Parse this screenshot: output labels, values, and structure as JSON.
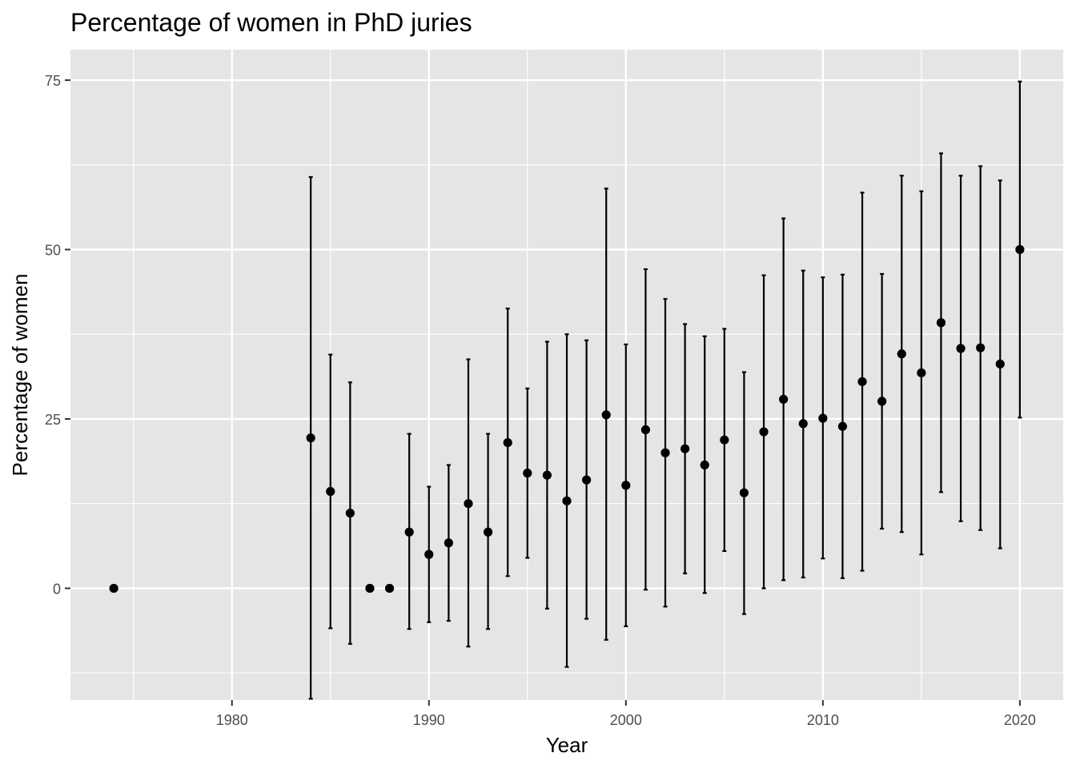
{
  "chart_data": {
    "type": "scatter",
    "title": "Percentage of women in PhD juries",
    "xlabel": "Year",
    "ylabel": "Percentage of women",
    "xlim": [
      1971.8,
      2022.2
    ],
    "ylim": [
      -16.5,
      79.5
    ],
    "x_ticks": [
      1980,
      1990,
      2000,
      2010,
      2020
    ],
    "x_tick_labels": [
      "1980",
      "1990",
      "2000",
      "2010",
      "2020"
    ],
    "y_ticks": [
      0,
      25,
      50,
      75
    ],
    "y_tick_labels": [
      "0",
      "25",
      "50",
      "75"
    ],
    "grid": true,
    "legend": "none",
    "colors": {
      "panel": "#e5e5e5",
      "grid": "#ffffff",
      "points": "#000000",
      "tick_text": "#4d4d4d"
    },
    "points": [
      {
        "x": 1974,
        "y": 0
      },
      {
        "x": 1984,
        "y": 22.2,
        "low": -16.3,
        "high": 60.7
      },
      {
        "x": 1985,
        "y": 14.3,
        "low": -5.9,
        "high": 34.5
      },
      {
        "x": 1986,
        "y": 11.1,
        "low": -8.2,
        "high": 30.4
      },
      {
        "x": 1987,
        "y": 0
      },
      {
        "x": 1988,
        "y": 0
      },
      {
        "x": 1989,
        "y": 8.3,
        "low": -6.0,
        "high": 22.8
      },
      {
        "x": 1990,
        "y": 5.0,
        "low": -5.0,
        "high": 15.0
      },
      {
        "x": 1991,
        "y": 6.7,
        "low": -4.8,
        "high": 18.2
      },
      {
        "x": 1992,
        "y": 12.5,
        "low": -8.6,
        "high": 33.8
      },
      {
        "x": 1993,
        "y": 8.3,
        "low": -6.0,
        "high": 22.8
      },
      {
        "x": 1994,
        "y": 21.5,
        "low": 1.8,
        "high": 41.3
      },
      {
        "x": 1995,
        "y": 17.0,
        "low": 4.5,
        "high": 29.5
      },
      {
        "x": 1996,
        "y": 16.7,
        "low": -3.0,
        "high": 36.4
      },
      {
        "x": 1997,
        "y": 12.9,
        "low": -11.6,
        "high": 37.5
      },
      {
        "x": 1998,
        "y": 16.0,
        "low": -4.5,
        "high": 36.6
      },
      {
        "x": 1999,
        "y": 25.6,
        "low": -7.6,
        "high": 59.0
      },
      {
        "x": 2000,
        "y": 15.2,
        "low": -5.6,
        "high": 36.0
      },
      {
        "x": 2001,
        "y": 23.4,
        "low": -0.2,
        "high": 47.1
      },
      {
        "x": 2002,
        "y": 20.0,
        "low": -2.7,
        "high": 42.7
      },
      {
        "x": 2003,
        "y": 20.6,
        "low": 2.2,
        "high": 39.0
      },
      {
        "x": 2004,
        "y": 18.2,
        "low": -0.7,
        "high": 37.2
      },
      {
        "x": 2005,
        "y": 21.9,
        "low": 5.5,
        "high": 38.3
      },
      {
        "x": 2006,
        "y": 14.1,
        "low": -3.8,
        "high": 31.9
      },
      {
        "x": 2007,
        "y": 23.1,
        "low": 0.0,
        "high": 46.2
      },
      {
        "x": 2008,
        "y": 27.9,
        "low": 1.2,
        "high": 54.6
      },
      {
        "x": 2009,
        "y": 24.3,
        "low": 1.6,
        "high": 46.9
      },
      {
        "x": 2010,
        "y": 25.1,
        "low": 4.4,
        "high": 45.9
      },
      {
        "x": 2011,
        "y": 23.9,
        "low": 1.5,
        "high": 46.3
      },
      {
        "x": 2012,
        "y": 30.5,
        "low": 2.6,
        "high": 58.4
      },
      {
        "x": 2013,
        "y": 27.6,
        "low": 8.8,
        "high": 46.4
      },
      {
        "x": 2014,
        "y": 34.6,
        "low": 8.3,
        "high": 60.9
      },
      {
        "x": 2015,
        "y": 31.8,
        "low": 5.0,
        "high": 58.6
      },
      {
        "x": 2016,
        "y": 39.2,
        "low": 14.2,
        "high": 64.2
      },
      {
        "x": 2017,
        "y": 35.4,
        "low": 9.9,
        "high": 60.9
      },
      {
        "x": 2018,
        "y": 35.5,
        "low": 8.6,
        "high": 62.3
      },
      {
        "x": 2019,
        "y": 33.1,
        "low": 5.9,
        "high": 60.2
      },
      {
        "x": 2020,
        "y": 50.0,
        "low": 25.2,
        "high": 74.8
      }
    ]
  }
}
